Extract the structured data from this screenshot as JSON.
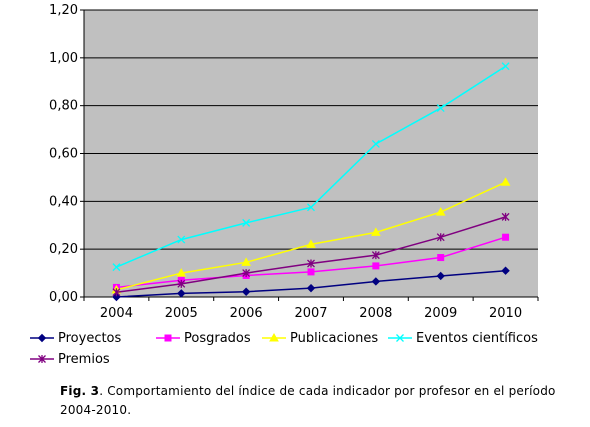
{
  "chart_data": {
    "type": "line",
    "categories": [
      "2004",
      "2005",
      "2006",
      "2007",
      "2008",
      "2009",
      "2010"
    ],
    "ylim": [
      0,
      1.2
    ],
    "yticks": [
      "0,00",
      "0,20",
      "0,40",
      "0,60",
      "0,80",
      "1,00",
      "1,20"
    ],
    "grid": true,
    "plot_background": "#c0c0c0",
    "legend_position": "bottom",
    "series": [
      {
        "name": "Proyectos",
        "color": "#000080",
        "marker": "diamond",
        "values": [
          0.0,
          0.015,
          0.022,
          0.037,
          0.065,
          0.088,
          0.11
        ]
      },
      {
        "name": "Posgrados",
        "color": "#ff00ff",
        "marker": "square",
        "values": [
          0.04,
          0.07,
          0.09,
          0.105,
          0.13,
          0.165,
          0.25
        ]
      },
      {
        "name": "Publicaciones",
        "color": "#ffff00",
        "marker": "triangle",
        "values": [
          0.03,
          0.1,
          0.145,
          0.22,
          0.27,
          0.355,
          0.48
        ]
      },
      {
        "name": "Eventos científicos",
        "color": "#00ffff",
        "marker": "x",
        "values": [
          0.125,
          0.24,
          0.31,
          0.375,
          0.64,
          0.79,
          0.965
        ]
      },
      {
        "name": "Premios",
        "color": "#800080",
        "marker": "star",
        "values": [
          0.02,
          0.055,
          0.1,
          0.14,
          0.175,
          0.25,
          0.335
        ]
      }
    ]
  },
  "caption": {
    "lead": "Fig. 3",
    "text": ". Comportamiento del índice de cada indicador por profesor en el período  2004-2010."
  }
}
